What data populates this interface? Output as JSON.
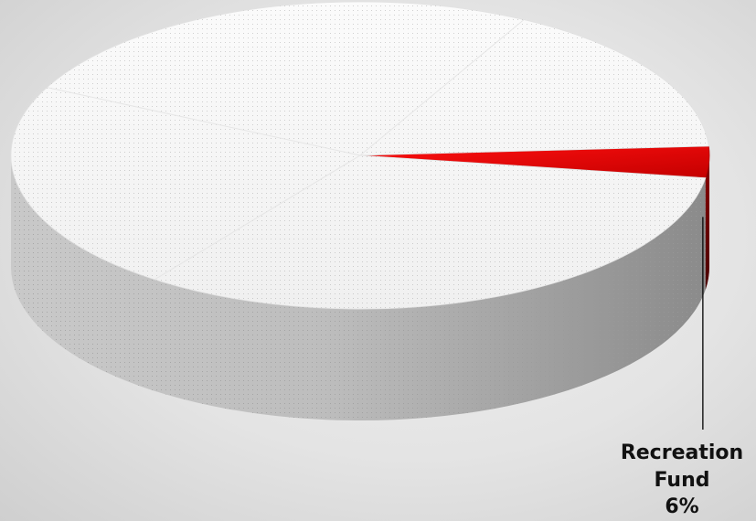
{
  "chart_data": {
    "type": "pie",
    "style": "3d",
    "title": "",
    "slices": [
      {
        "label_lines": [
          "Recreation",
          "Fund",
          "6%"
        ],
        "value": 6,
        "color": "#e00000",
        "highlighted": true
      },
      {
        "label_lines": [],
        "value": 94,
        "color": "#f4f4f4",
        "highlighted": false
      }
    ],
    "legend": "none"
  }
}
